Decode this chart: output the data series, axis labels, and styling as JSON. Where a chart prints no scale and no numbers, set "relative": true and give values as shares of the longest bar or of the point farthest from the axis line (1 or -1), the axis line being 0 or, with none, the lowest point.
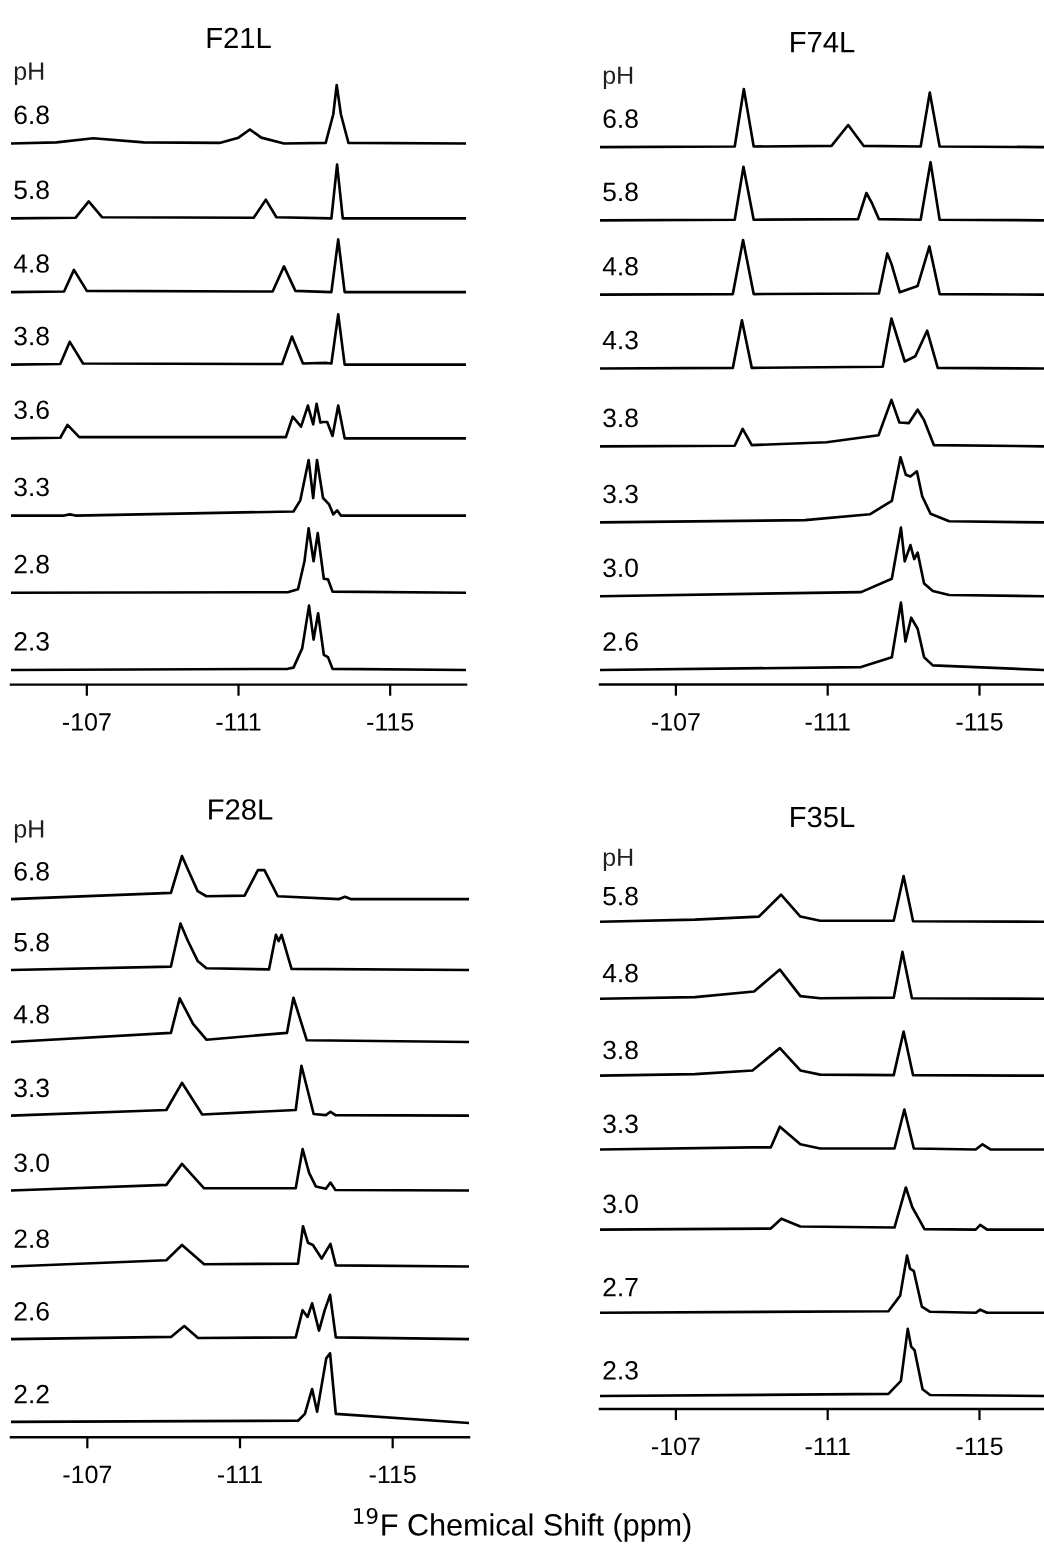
{
  "chart_data": [
    {
      "type": "line",
      "title": "F21L",
      "relative": true,
      "xlim": [
        -105,
        -117
      ],
      "xticks": [
        -107,
        -111,
        -115
      ],
      "grid": false,
      "legend": false,
      "tick_labels": "x",
      "annotations": [
        "pH"
      ],
      "series": [
        {
          "name": "6.8",
          "color": "#000000",
          "x": [
            -105,
            -106.2,
            -107.17,
            -108.5,
            -110.5,
            -111.0,
            -111.3,
            -111.6,
            -112.2,
            -113.3,
            -113.5,
            -113.59,
            -113.7,
            -113.9,
            -117
          ],
          "values": [
            0.9,
            0.902,
            0.909,
            0.902,
            0.901,
            0.91,
            0.924,
            0.91,
            0.9,
            0.901,
            0.95,
            1.0,
            0.95,
            0.901,
            0.9
          ]
        },
        {
          "name": "5.8",
          "color": "#000000",
          "x": [
            -105,
            -106.7,
            -107.05,
            -107.4,
            -111.4,
            -111.72,
            -112.0,
            -113.45,
            -113.6,
            -113.75,
            -117
          ],
          "values": [
            0.772,
            0.773,
            0.801,
            0.774,
            0.773,
            0.804,
            0.774,
            0.772,
            0.864,
            0.772,
            0.772
          ]
        },
        {
          "name": "4.8",
          "color": "#000000",
          "x": [
            -105,
            -106.4,
            -106.66,
            -107.0,
            -111.9,
            -112.2,
            -112.5,
            -113.45,
            -113.63,
            -113.8,
            -117
          ],
          "values": [
            0.646,
            0.647,
            0.684,
            0.648,
            0.647,
            0.69,
            0.648,
            0.646,
            0.736,
            0.646,
            0.646
          ]
        },
        {
          "name": "3.8",
          "color": "#000000",
          "x": [
            -105,
            -106.3,
            -106.55,
            -106.9,
            -112.15,
            -112.41,
            -112.7,
            -113.3,
            -113.45,
            -113.63,
            -113.8,
            -117
          ],
          "values": [
            0.522,
            0.523,
            0.561,
            0.524,
            0.523,
            0.57,
            0.524,
            0.525,
            0.524,
            0.608,
            0.522,
            0.522
          ]
        },
        {
          "name": "3.6",
          "color": "#000000",
          "x": [
            -105,
            -106.3,
            -106.49,
            -106.8,
            -112.25,
            -112.43,
            -112.65,
            -112.83,
            -112.97,
            -113.06,
            -113.16,
            -113.23,
            -113.34,
            -113.48,
            -113.63,
            -113.8,
            -117
          ],
          "values": [
            0.396,
            0.397,
            0.419,
            0.398,
            0.398,
            0.433,
            0.416,
            0.452,
            0.42,
            0.455,
            0.423,
            0.424,
            0.424,
            0.4,
            0.452,
            0.396,
            0.396
          ]
        },
        {
          "name": "3.3",
          "color": "#000000",
          "x": [
            -105,
            -106.4,
            -106.55,
            -106.7,
            -112.45,
            -112.63,
            -112.85,
            -112.97,
            -113.07,
            -113.23,
            -113.39,
            -113.5,
            -113.6,
            -113.7,
            -117
          ],
          "values": [
            0.264,
            0.264,
            0.266,
            0.264,
            0.271,
            0.29,
            0.359,
            0.294,
            0.359,
            0.294,
            0.283,
            0.266,
            0.273,
            0.264,
            0.264
          ]
        },
        {
          "name": "2.8",
          "color": "#000000",
          "x": [
            -105,
            -112.3,
            -112.57,
            -112.74,
            -112.85,
            -112.98,
            -113.09,
            -113.25,
            -113.36,
            -113.48,
            -117
          ],
          "values": [
            0.132,
            0.133,
            0.138,
            0.186,
            0.242,
            0.186,
            0.234,
            0.156,
            0.155,
            0.134,
            0.132
          ]
        },
        {
          "name": "2.3",
          "color": "#000000",
          "x": [
            -105,
            -112.3,
            -112.45,
            -112.68,
            -112.86,
            -112.98,
            -113.1,
            -113.25,
            -113.36,
            -113.48,
            -117
          ],
          "values": [
            0,
            0.002,
            0.004,
            0.037,
            0.11,
            0.052,
            0.097,
            0.026,
            0.022,
            0.002,
            0
          ]
        }
      ]
    },
    {
      "type": "line",
      "title": "F74L",
      "relative": true,
      "xlim": [
        -105,
        -116.7
      ],
      "xticks": [
        -107,
        -111,
        -115
      ],
      "grid": false,
      "legend": false,
      "tick_labels": "x",
      "annotations": [
        "pH"
      ],
      "series": [
        {
          "name": "6.8",
          "color": "#000000",
          "x": [
            -105,
            -108.55,
            -108.79,
            -109.05,
            -111.1,
            -111.54,
            -111.95,
            -113.45,
            -113.69,
            -113.95,
            -116.7
          ],
          "values": [
            0.9,
            0.901,
            1.0,
            0.901,
            0.902,
            0.938,
            0.902,
            0.901,
            0.994,
            0.901,
            0.9
          ]
        },
        {
          "name": "5.8",
          "color": "#000000",
          "x": [
            -105,
            -108.55,
            -108.78,
            -109.05,
            -111.8,
            -112.02,
            -112.17,
            -112.35,
            -113.45,
            -113.71,
            -113.95,
            -116.7
          ],
          "values": [
            0.774,
            0.775,
            0.866,
            0.775,
            0.776,
            0.821,
            0.803,
            0.776,
            0.775,
            0.874,
            0.775,
            0.774
          ]
        },
        {
          "name": "4.8",
          "color": "#000000",
          "x": [
            -105,
            -108.5,
            -108.77,
            -109.05,
            -112.35,
            -112.57,
            -112.68,
            -112.9,
            -113.37,
            -113.68,
            -113.95,
            -116.7
          ],
          "values": [
            0.646,
            0.647,
            0.74,
            0.647,
            0.648,
            0.717,
            0.699,
            0.65,
            0.661,
            0.729,
            0.647,
            0.646
          ]
        },
        {
          "name": "4.3",
          "color": "#000000",
          "x": [
            -105,
            -108.5,
            -108.74,
            -109.0,
            -112.45,
            -112.68,
            -113.03,
            -113.31,
            -113.62,
            -113.9,
            -116.7
          ],
          "values": [
            0.519,
            0.52,
            0.602,
            0.52,
            0.522,
            0.605,
            0.531,
            0.54,
            0.584,
            0.52,
            0.519
          ]
        },
        {
          "name": "3.8",
          "color": "#000000",
          "x": [
            -105,
            -108.55,
            -108.76,
            -109.0,
            -110.97,
            -112.34,
            -112.68,
            -112.89,
            -113.14,
            -113.37,
            -113.54,
            -113.8,
            -116.7
          ],
          "values": [
            0.385,
            0.386,
            0.415,
            0.387,
            0.392,
            0.404,
            0.465,
            0.426,
            0.425,
            0.448,
            0.43,
            0.387,
            0.385
          ]
        },
        {
          "name": "3.3",
          "color": "#000000",
          "x": [
            -105,
            -110.4,
            -112.11,
            -112.69,
            -112.92,
            -113.06,
            -113.18,
            -113.35,
            -113.49,
            -113.71,
            -114.2,
            -116.7
          ],
          "values": [
            0.254,
            0.258,
            0.268,
            0.291,
            0.366,
            0.336,
            0.333,
            0.342,
            0.299,
            0.269,
            0.256,
            0.254
          ]
        },
        {
          "name": "3.0",
          "color": "#000000",
          "x": [
            -105,
            -111.88,
            -112.69,
            -112.93,
            -113.03,
            -113.18,
            -113.28,
            -113.37,
            -113.54,
            -113.77,
            -114.2,
            -116.7
          ],
          "values": [
            0.127,
            0.134,
            0.157,
            0.245,
            0.187,
            0.215,
            0.191,
            0.202,
            0.149,
            0.136,
            0.129,
            0.127
          ]
        },
        {
          "name": "2.6",
          "color": "#000000",
          "x": [
            -105,
            -111.88,
            -112.69,
            -112.93,
            -113.05,
            -113.2,
            -113.37,
            -113.54,
            -113.77,
            -116.7
          ],
          "values": [
            0,
            0.005,
            0.022,
            0.116,
            0.049,
            0.09,
            0.071,
            0.022,
            0.008,
            0
          ]
        }
      ]
    },
    {
      "type": "line",
      "title": "F28L",
      "relative": true,
      "xlim": [
        -105,
        -117
      ],
      "xticks": [
        -107,
        -111,
        -115
      ],
      "grid": false,
      "legend": false,
      "tick_labels": "x",
      "annotations": [
        "pH"
      ],
      "series": [
        {
          "name": "6.8",
          "color": "#000000",
          "x": [
            -105,
            -109.19,
            -109.48,
            -109.65,
            -109.89,
            -110.12,
            -111.12,
            -111.47,
            -111.64,
            -111.99,
            -113.6,
            -113.75,
            -113.9,
            -117
          ],
          "values": [
            0.924,
            0.935,
            1.0,
            0.974,
            0.938,
            0.929,
            0.93,
            0.975,
            0.975,
            0.929,
            0.924,
            0.928,
            0.924,
            0.924
          ]
        },
        {
          "name": "5.8",
          "color": "#000000",
          "x": [
            -105,
            -109.19,
            -109.44,
            -109.63,
            -109.89,
            -110.12,
            -111.76,
            -111.94,
            -112.01,
            -112.09,
            -112.35,
            -117
          ],
          "values": [
            0.799,
            0.805,
            0.881,
            0.851,
            0.815,
            0.802,
            0.8,
            0.861,
            0.85,
            0.861,
            0.801,
            0.799
          ]
        },
        {
          "name": "4.8",
          "color": "#000000",
          "x": [
            -105,
            -109.19,
            -109.42,
            -109.77,
            -110.12,
            -112.23,
            -112.4,
            -112.75,
            -117
          ],
          "values": [
            0.672,
            0.688,
            0.749,
            0.704,
            0.676,
            0.688,
            0.75,
            0.675,
            0.672
          ]
        },
        {
          "name": "3.3",
          "color": "#000000",
          "x": [
            -105,
            -109.07,
            -109.48,
            -110.01,
            -112.46,
            -112.61,
            -112.93,
            -113.25,
            -113.37,
            -113.5,
            -117
          ],
          "values": [
            0.542,
            0.552,
            0.6,
            0.544,
            0.552,
            0.63,
            0.545,
            0.543,
            0.549,
            0.543,
            0.542
          ]
        },
        {
          "name": "3.0",
          "color": "#000000",
          "x": [
            -105,
            -109.07,
            -109.48,
            -110.06,
            -112.46,
            -112.64,
            -112.81,
            -112.99,
            -113.25,
            -113.37,
            -113.5,
            -117
          ],
          "values": [
            0.41,
            0.42,
            0.457,
            0.414,
            0.414,
            0.483,
            0.441,
            0.417,
            0.413,
            0.424,
            0.411,
            0.41
          ]
        },
        {
          "name": "2.8",
          "color": "#000000",
          "x": [
            -105,
            -109.07,
            -109.48,
            -110.06,
            -112.52,
            -112.65,
            -112.78,
            -112.91,
            -113.14,
            -113.37,
            -113.51,
            -117
          ],
          "values": [
            0.276,
            0.287,
            0.314,
            0.28,
            0.281,
            0.347,
            0.318,
            0.314,
            0.29,
            0.316,
            0.278,
            0.276
          ]
        },
        {
          "name": "2.6",
          "color": "#000000",
          "x": [
            -105,
            -109.2,
            -109.54,
            -109.9,
            -112.46,
            -112.64,
            -112.77,
            -112.89,
            -113.07,
            -113.22,
            -113.36,
            -113.51,
            -117
          ],
          "values": [
            0.148,
            0.152,
            0.171,
            0.15,
            0.151,
            0.199,
            0.187,
            0.211,
            0.163,
            0.199,
            0.226,
            0.151,
            0.148
          ]
        },
        {
          "name": "2.2",
          "color": "#000000",
          "x": [
            -105,
            -112.52,
            -112.7,
            -112.89,
            -113.02,
            -113.26,
            -113.36,
            -113.51,
            -117
          ],
          "values": [
            0.002,
            0.004,
            0.016,
            0.06,
            0.02,
            0.114,
            0.123,
            0.016,
            0
          ]
        }
      ]
    },
    {
      "type": "line",
      "title": "F35L",
      "xlabel": "$^{19}$F Chemical Shift (ppm)",
      "relative": true,
      "xlim": [
        -105,
        -116.7
      ],
      "xticks": [
        -107,
        -111,
        -115
      ],
      "grid": false,
      "legend": false,
      "tick_labels": "x",
      "annotations": [
        "pH"
      ],
      "series": [
        {
          "name": "5.8",
          "color": "#000000",
          "x": [
            -105,
            -107.5,
            -109.19,
            -109.77,
            -110.28,
            -110.8,
            -112.74,
            -113.0,
            -113.25,
            -116.7
          ],
          "values": [
            0.912,
            0.916,
            0.922,
            0.964,
            0.922,
            0.914,
            0.914,
            1.0,
            0.913,
            0.912
          ]
        },
        {
          "name": "4.8",
          "color": "#000000",
          "x": [
            -105,
            -107.5,
            -109.06,
            -109.74,
            -110.28,
            -110.8,
            -112.74,
            -112.97,
            -113.22,
            -116.7
          ],
          "values": [
            0.764,
            0.767,
            0.778,
            0.82,
            0.769,
            0.765,
            0.766,
            0.854,
            0.765,
            0.764
          ]
        },
        {
          "name": "3.8",
          "color": "#000000",
          "x": [
            -105,
            -107.5,
            -109.02,
            -109.74,
            -110.28,
            -110.8,
            -112.74,
            -113.0,
            -113.25,
            -116.7
          ],
          "values": [
            0.616,
            0.619,
            0.626,
            0.669,
            0.626,
            0.618,
            0.617,
            0.701,
            0.617,
            0.616
          ]
        },
        {
          "name": "3.3",
          "color": "#000000",
          "x": [
            -105,
            -109.0,
            -109.5,
            -109.74,
            -110.28,
            -110.8,
            -112.76,
            -113.02,
            -113.27,
            -114.9,
            -115.08,
            -115.3,
            -116.7
          ],
          "values": [
            0.474,
            0.478,
            0.478,
            0.518,
            0.484,
            0.476,
            0.476,
            0.551,
            0.476,
            0.474,
            0.484,
            0.474,
            0.474
          ]
        },
        {
          "name": "3.0",
          "color": "#000000",
          "x": [
            -105,
            -109.5,
            -109.78,
            -110.28,
            -112.76,
            -113.06,
            -113.23,
            -113.39,
            -113.55,
            -114.9,
            -115.02,
            -115.2,
            -116.7
          ],
          "values": [
            0.32,
            0.322,
            0.341,
            0.326,
            0.324,
            0.401,
            0.363,
            0.342,
            0.321,
            0.32,
            0.329,
            0.32,
            0.32
          ]
        },
        {
          "name": "2.7",
          "color": "#000000",
          "x": [
            -105,
            -112.6,
            -112.91,
            -113.09,
            -113.17,
            -113.27,
            -113.48,
            -113.7,
            -114.9,
            -115.02,
            -115.2,
            -116.7
          ],
          "values": [
            0.16,
            0.163,
            0.193,
            0.27,
            0.245,
            0.24,
            0.172,
            0.162,
            0.16,
            0.166,
            0.16,
            0.16
          ]
        },
        {
          "name": "2.3",
          "color": "#000000",
          "x": [
            -105,
            -112.6,
            -112.93,
            -113.11,
            -113.2,
            -113.29,
            -113.5,
            -113.7,
            -116.7
          ],
          "values": [
            0,
            0.004,
            0.029,
            0.129,
            0.095,
            0.088,
            0.013,
            0.002,
            0
          ]
        }
      ]
    }
  ]
}
